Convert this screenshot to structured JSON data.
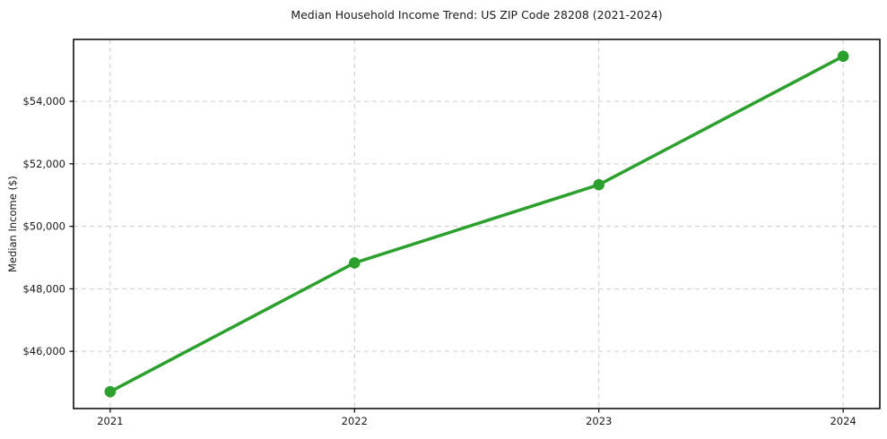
{
  "chart_data": {
    "type": "line",
    "title": "Median Household Income Trend: US ZIP Code 28208 (2021-2024)",
    "xlabel": "",
    "ylabel": "Median Income ($)",
    "x": [
      2021,
      2022,
      2023,
      2024
    ],
    "xtick_labels": [
      "2021",
      "2022",
      "2023",
      "2024"
    ],
    "series": [
      {
        "name": "median_household_income",
        "color": "#2ca02c",
        "marker": "circle",
        "values": [
          44710,
          48830,
          51330,
          55440
        ]
      }
    ],
    "yticks": [
      46000,
      48000,
      50000,
      52000,
      54000
    ],
    "ytick_labels": [
      "$46,000",
      "$48,000",
      "$50,000",
      "$52,000",
      "$54,000"
    ],
    "xlim": [
      2020.85,
      2024.15
    ],
    "ylim": [
      44170,
      55980
    ],
    "grid": true,
    "grid_line_style": "dashed",
    "legend_position": "none"
  },
  "colors": {
    "line": "#2ca02c",
    "grid": "#cccccc",
    "spine": "#000000",
    "text": "#1a1a1a",
    "background": "#ffffff"
  }
}
